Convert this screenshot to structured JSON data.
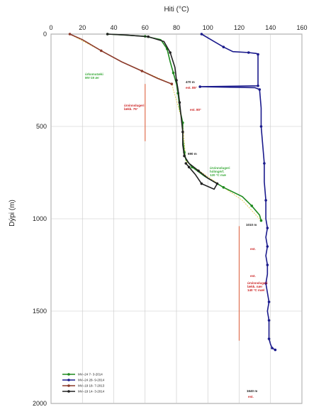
{
  "chart_data": {
    "type": "line",
    "title": "",
    "xlabel": "Hiti (°C)",
    "ylabel": "Dýpi (m)",
    "xlim": [
      0,
      160
    ],
    "ylim": [
      0,
      2000
    ],
    "x_ticks": [
      "0",
      "20",
      "40",
      "60",
      "80",
      "100",
      "120",
      "140",
      "160"
    ],
    "y_ticks": [
      "0",
      "500",
      "1000",
      "1500",
      "2000"
    ],
    "y_inverted": true,
    "grid": true,
    "legend_position": "bottom-left",
    "series": [
      {
        "name": "MV–24 7- 3-2014",
        "color": "#1f8a1f",
        "marker": "circle",
        "points": [
          [
            36,
            0
          ],
          [
            45,
            4
          ],
          [
            60,
            12
          ],
          [
            70,
            30
          ],
          [
            74,
            80
          ],
          [
            76,
            150
          ],
          [
            78,
            210
          ],
          [
            80,
            270
          ],
          [
            81,
            320
          ],
          [
            82,
            400
          ],
          [
            84,
            480
          ],
          [
            84,
            560
          ],
          [
            85,
            640
          ],
          [
            86,
            680
          ],
          [
            90,
            720
          ],
          [
            98,
            770
          ],
          [
            110,
            830
          ],
          [
            122,
            880
          ],
          [
            128,
            930
          ],
          [
            133,
            980
          ],
          [
            134,
            1010
          ]
        ]
      },
      {
        "name": "MV–24 28- 9-2014",
        "color": "#1a1a8c",
        "marker": "circle",
        "points": [
          [
            96,
            0
          ],
          [
            104,
            40
          ],
          [
            110,
            70
          ],
          [
            116,
            95
          ],
          [
            126,
            100
          ],
          [
            131,
            105
          ],
          [
            132,
            110
          ],
          [
            132,
            200
          ],
          [
            132,
            280
          ],
          [
            118,
            282
          ],
          [
            95,
            285
          ],
          [
            130,
            290
          ],
          [
            133,
            300
          ],
          [
            134,
            400
          ],
          [
            134,
            500
          ],
          [
            135,
            600
          ],
          [
            136,
            700
          ],
          [
            136,
            800
          ],
          [
            137,
            900
          ],
          [
            137,
            1000
          ],
          [
            138,
            1050
          ],
          [
            137,
            1100
          ],
          [
            138,
            1150
          ],
          [
            137,
            1200
          ],
          [
            138,
            1250
          ],
          [
            138,
            1300
          ],
          [
            137,
            1350
          ],
          [
            138,
            1400
          ],
          [
            139,
            1450
          ],
          [
            138,
            1500
          ],
          [
            139,
            1550
          ],
          [
            139,
            1600
          ],
          [
            139,
            1650
          ],
          [
            140,
            1680
          ],
          [
            141,
            1700
          ],
          [
            143,
            1710
          ]
        ]
      },
      {
        "name": "MV–19 18- 7-2013",
        "color": "#8b3a2a",
        "marker": "circle",
        "points": [
          [
            12,
            0
          ],
          [
            20,
            30
          ],
          [
            32,
            90
          ],
          [
            45,
            150
          ],
          [
            58,
            200
          ],
          [
            68,
            240
          ],
          [
            77,
            270
          ]
        ]
      },
      {
        "name": "MV–19 14- 3-2014",
        "color": "#222222",
        "marker": "circle",
        "points": [
          [
            36,
            0
          ],
          [
            48,
            5
          ],
          [
            62,
            14
          ],
          [
            72,
            40
          ],
          [
            76,
            100
          ],
          [
            79,
            180
          ],
          [
            80,
            250
          ],
          [
            81,
            300
          ],
          [
            82,
            370
          ],
          [
            83,
            450
          ],
          [
            84,
            530
          ],
          [
            84,
            600
          ],
          [
            85,
            660
          ],
          [
            88,
            700
          ],
          [
            94,
            740
          ],
          [
            100,
            780
          ],
          [
            106,
            810
          ],
          [
            104,
            840
          ],
          [
            96,
            810
          ],
          [
            92,
            760
          ],
          [
            88,
            720
          ],
          [
            86,
            700
          ]
        ]
      }
    ],
    "annotations": [
      {
        "text": "úrkomutæki\nMV-19 ær",
        "color": "#3aaa3a"
      },
      {
        "text": "470 m",
        "color": "#222222"
      },
      {
        "text": "est. 85°",
        "color": "#cc2222"
      },
      {
        "text": "úrvinnslugeri\nlækk. 75°",
        "color": "#cc2222"
      },
      {
        "text": "est. 80°",
        "color": "#cc2222"
      },
      {
        "text": "690 m",
        "color": "#222222"
      },
      {
        "text": "úrvinnslugeri\nhólmgérf.\n120 °C mæ",
        "color": "#3aaa3a"
      },
      {
        "text": "1010 m",
        "color": "#222222"
      },
      {
        "text": "est.",
        "color": "#cc2222"
      },
      {
        "text": "est.",
        "color": "#cc2222"
      },
      {
        "text": "úrvinnslugeri\nlækk. nær\n140 °C mæl",
        "color": "#cc2222"
      },
      {
        "text": "1640 m",
        "color": "#222222"
      },
      {
        "text": "est.",
        "color": "#cc2222"
      }
    ],
    "reference_lines": [
      {
        "x": 60,
        "y_from": 270,
        "y_to": 580,
        "color": "#e07050"
      },
      {
        "x": 120,
        "y_from": 1040,
        "y_to": 1660,
        "color": "#e07050"
      }
    ]
  }
}
